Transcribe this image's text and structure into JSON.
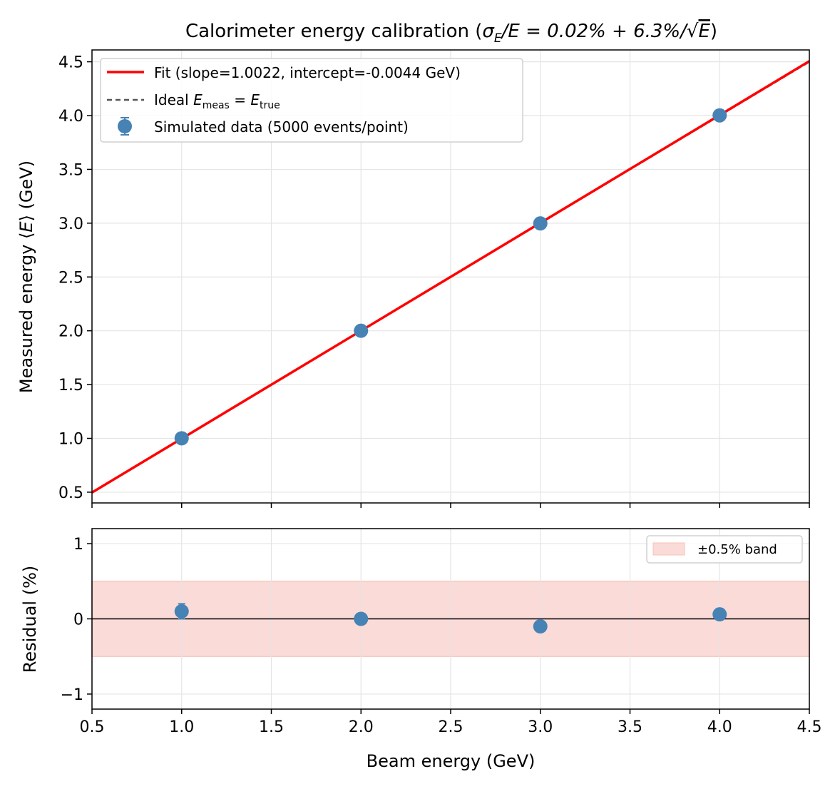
{
  "chart_data": [
    {
      "type": "scatter",
      "panel": "main",
      "title": "Calorimeter energy calibration  (σ_E/E = 0.02% + 6.3%/√E)",
      "title_parts": {
        "prefix": "Calorimeter energy calibration  (",
        "sigma": "σ",
        "sub": "E",
        "rest": "/E = 0.02% + 6.3%/",
        "sqrt": "√",
        "E": "E",
        "close": ")"
      },
      "xlabel": "",
      "ylabel": "Measured energy ⟨E⟩ (GeV)",
      "ylabel_parts": {
        "prefix": "Measured energy ⟨",
        "E": "E",
        "suffix": "⟩ (GeV)"
      },
      "xlim": [
        0.5,
        4.5
      ],
      "ylim": [
        0.4,
        4.61
      ],
      "xticks": [
        0.5,
        1.0,
        1.5,
        2.0,
        2.5,
        3.0,
        3.5,
        4.0,
        4.5
      ],
      "yticks": [
        "0.5",
        "1.0",
        "1.5",
        "2.0",
        "2.5",
        "3.0",
        "3.5",
        "4.0",
        "4.5"
      ],
      "grid": true,
      "legend_placement": "upper-left",
      "series": [
        {
          "name": "Fit (slope=1.0022, intercept=-0.0044 GeV)",
          "kind": "line",
          "color": "#ff0000",
          "slope": 1.0022,
          "intercept": -0.0044
        },
        {
          "name": "Ideal E_meas = E_true",
          "name_parts": {
            "prefix": "Ideal ",
            "E1": "E",
            "sub1": "meas",
            "eq": " = ",
            "E2": "E",
            "sub2": "true"
          },
          "kind": "dashed-line",
          "color": "#555555",
          "slope": 1,
          "intercept": 0
        },
        {
          "name": "Simulated data (5000 events/point)",
          "kind": "errorbar",
          "color": "#4682b4",
          "x": [
            1.0,
            2.0,
            3.0,
            4.0
          ],
          "y": [
            1.001,
            2.0,
            2.998,
            4.002
          ],
          "yerr": [
            0.001,
            0.001,
            0.001,
            0.001
          ]
        }
      ]
    },
    {
      "type": "scatter",
      "panel": "residual",
      "xlabel": "Beam energy (GeV)",
      "ylabel": "Residual (%)",
      "xlim": [
        0.5,
        4.5
      ],
      "ylim": [
        -1.2,
        1.2
      ],
      "xticks": [
        "0.5",
        "1.0",
        "1.5",
        "2.0",
        "2.5",
        "3.0",
        "3.5",
        "4.0",
        "4.5"
      ],
      "yticks": [
        "−1",
        "0",
        "1"
      ],
      "ytick_values": [
        -1,
        0,
        1
      ],
      "grid": true,
      "legend_placement": "upper-right",
      "band": {
        "name": "±0.5% band",
        "low": -0.5,
        "high": 0.5,
        "color": "#fadbd8"
      },
      "zero_line": 0,
      "series": [
        {
          "kind": "errorbar",
          "color": "#4682b4",
          "x": [
            1.0,
            2.0,
            3.0,
            4.0
          ],
          "y": [
            0.1,
            0.0,
            -0.1,
            0.06
          ],
          "yerr": [
            0.1,
            0.07,
            0.07,
            0.06
          ]
        }
      ]
    }
  ]
}
